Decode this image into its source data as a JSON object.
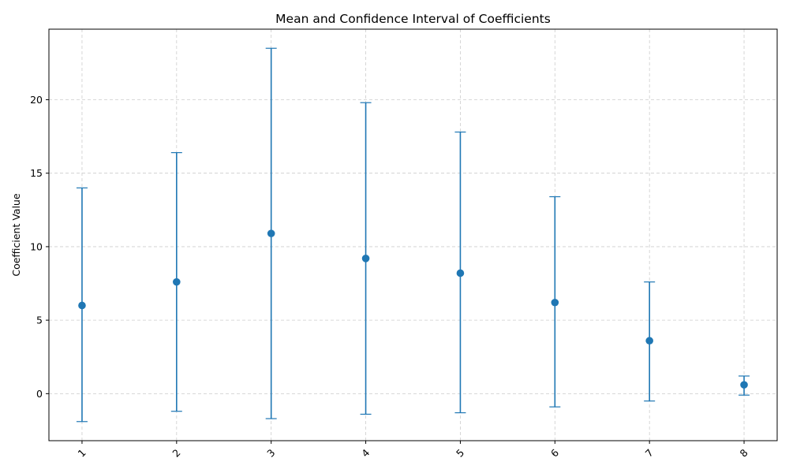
{
  "chart_data": {
    "type": "scatter",
    "title": "Mean and Confidence Interval of Coefficients",
    "xlabel": "",
    "ylabel": "Coefficient Value",
    "categories": [
      "1",
      "2",
      "3",
      "4",
      "5",
      "6",
      "7",
      "8"
    ],
    "series": [
      {
        "values": [
          6.0,
          7.6,
          10.9,
          9.2,
          8.2,
          6.2,
          3.6,
          0.6
        ],
        "lower": [
          -1.9,
          -1.2,
          -1.7,
          -1.4,
          -1.3,
          -0.9,
          -0.5,
          -0.1
        ],
        "upper": [
          14.0,
          16.4,
          23.5,
          19.8,
          17.8,
          13.4,
          7.6,
          1.2
        ],
        "marker": "circle"
      }
    ],
    "ylim": [
      -3.2,
      24.8
    ],
    "yticks": [
      "0",
      "5",
      "10",
      "15",
      "20"
    ],
    "xtick_rotation": 45,
    "grid": true,
    "color": "#1f77b4"
  }
}
